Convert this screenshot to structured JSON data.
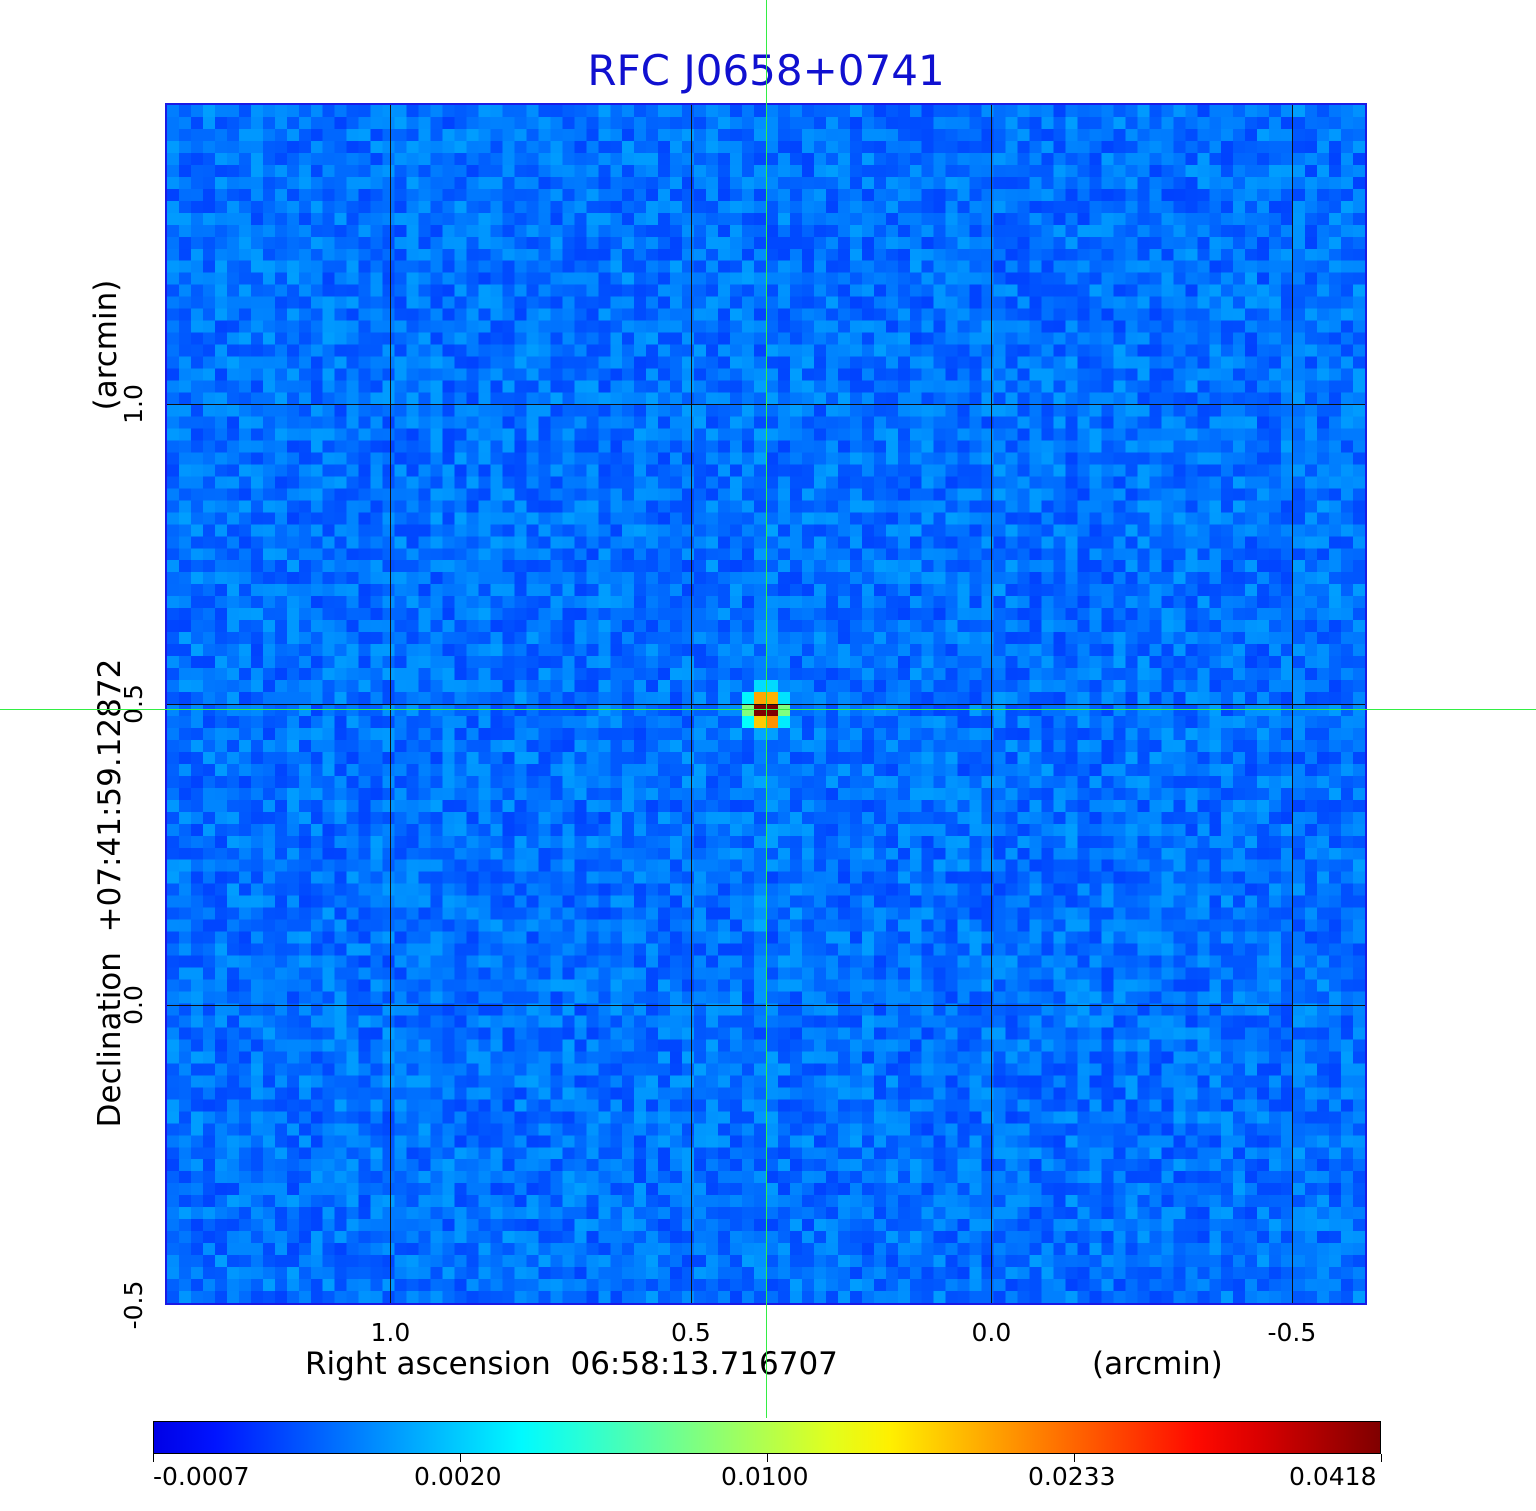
{
  "chart_data": {
    "type": "heatmap",
    "title": "RFC J0658+0741",
    "xlabel": "Right ascension  06:58:13.716707",
    "x_unit": "(arcmin)",
    "ylabel": "Declination  +07:41:59.12872",
    "y_unit": "(arcmin)",
    "xlim": [
      1.375,
      -0.625
    ],
    "ylim": [
      -0.5,
      1.5
    ],
    "x_ticks": [
      {
        "value": 1.0,
        "label": "1.0"
      },
      {
        "value": 0.5,
        "label": "0.5"
      },
      {
        "value": 0.0,
        "label": "0.0"
      },
      {
        "value": -0.5,
        "label": "-0.5"
      }
    ],
    "y_ticks": [
      {
        "value": -0.5,
        "label": "-0.5"
      },
      {
        "value": 0.0,
        "label": "0.0"
      },
      {
        "value": 0.5,
        "label": "0.5"
      },
      {
        "value": 1.0,
        "label": "1.0"
      }
    ],
    "grid": true,
    "colormap": "jet",
    "colorbar": {
      "ticks": [
        "-0.0007",
        "0.0020",
        "0.0100",
        "0.0233",
        "0.0418"
      ],
      "min": -0.0007,
      "max": 0.0418
    },
    "source": {
      "x": 0.375,
      "y": 0.49,
      "peak": 0.0418
    },
    "crosshair": {
      "x": 0.375,
      "y": 0.49
    },
    "colors": {
      "title": "#1010d0",
      "frame": "#1a1ae6",
      "crosshair": "#33ee44"
    }
  }
}
